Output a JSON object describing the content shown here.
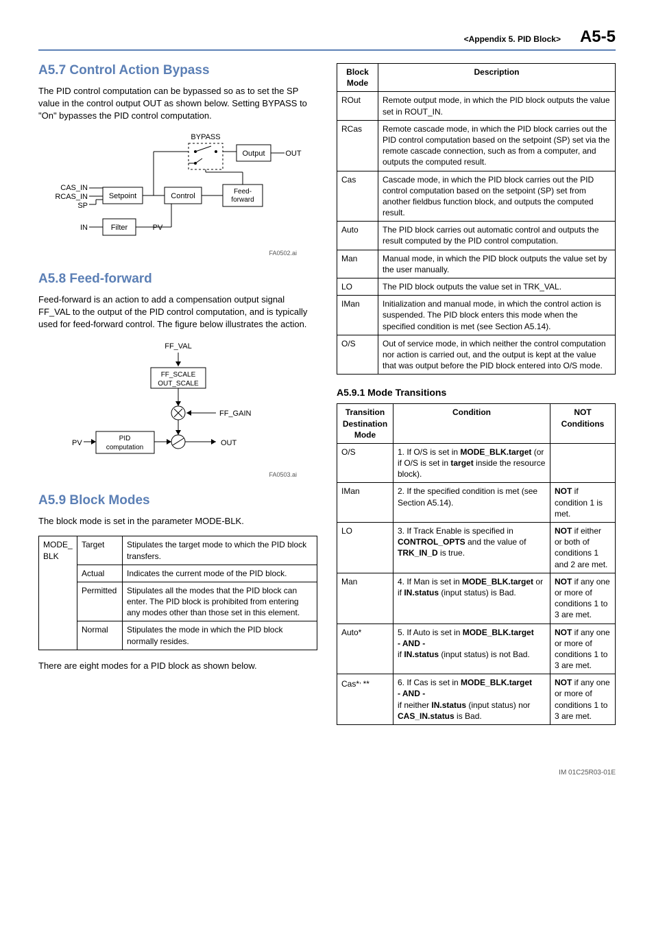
{
  "header": {
    "appendix": "<Appendix 5.  PID Block>",
    "pageNum": "A5-5"
  },
  "left": {
    "sec7": {
      "title": "A5.7   Control Action Bypass",
      "para": "The PID control computation can be bypassed so as to set the SP value in the control output OUT as shown below.  Setting BYPASS to \"On\" bypasses the PID control computation.",
      "diagram": {
        "labels": {
          "bypass": "BYPASS",
          "output": "Output",
          "out": "OUT",
          "cas_in": "CAS_IN",
          "rcas_in": "RCAS_IN",
          "sp": "SP",
          "setpoint": "Setpoint",
          "control": "Control",
          "feedforward": "Feed-\nforward",
          "in": "IN",
          "filter": "Filter",
          "pv": "PV"
        },
        "caption": "FA0502.ai"
      }
    },
    "sec8": {
      "title": "A5.8   Feed-forward",
      "para": "Feed-forward is an action to add a compensation output signal FF_VAL to the output of the PID control computation, and is typically used for feed-forward control.  The figure below illustrates the action.",
      "diagram": {
        "labels": {
          "ff_val": "FF_VAL",
          "ff_scale": "FF_SCALE",
          "out_scale": "OUT_SCALE",
          "ff_gain": "FF_GAIN",
          "pv": "PV",
          "pid": "PID\ncomputation",
          "out": "OUT"
        },
        "caption": "FA0503.ai"
      }
    },
    "sec9": {
      "title": "A5.9   Block Modes",
      "para": "The block mode is set in the parameter MODE-BLK.",
      "table": {
        "rows": [
          [
            "MODE_\nBLK",
            "Target",
            "Stipulates the target mode to which the PID block transfers."
          ],
          [
            "",
            "Actual",
            "Indicates the current mode of the PID block."
          ],
          [
            "",
            "Permitted",
            "Stipulates all the modes that the PID block can enter. The PID block is prohibited from entering any modes other than those set in this element."
          ],
          [
            "",
            "Normal",
            "Stipulates the mode in which the PID block normally resides."
          ]
        ]
      },
      "note": "There are eight modes for a PID block as shown below."
    }
  },
  "right": {
    "modesTable": {
      "headers": [
        "Block Mode",
        "Description"
      ],
      "rows": [
        [
          "ROut",
          "Remote output mode, in which the PID block outputs the value set in ROUT_IN."
        ],
        [
          "RCas",
          "Remote cascade mode, in which the PID block carries out the PID control computation based on the setpoint (SP) set via the remote cascade connection, such as from a computer, and outputs the computed result."
        ],
        [
          "Cas",
          "Cascade mode, in which the PID block carries out the PID control computation based on the setpoint (SP) set from another fieldbus function block, and outputs the computed result."
        ],
        [
          "Auto",
          "The PID block carries out automatic control and outputs the result computed by the PID control computation."
        ],
        [
          "Man",
          "Manual mode, in which the PID block outputs the value set by the user manually."
        ],
        [
          "LO",
          "The PID block outputs the value set in TRK_VAL."
        ],
        [
          "IMan",
          "Initialization and manual mode, in which the control action is suspended. The PID block enters this mode when the specified condition is met (see Section A5.14)."
        ],
        [
          "O/S",
          "Out of service mode, in which neither the control computation nor action is carried out, and the output is kept at the value that was output before the PID block entered into O/S mode."
        ]
      ]
    },
    "sub591": {
      "title": "A5.9.1   Mode Transitions",
      "table": {
        "headers": [
          "Transition Destination Mode",
          "Condition",
          "NOT Conditions"
        ],
        "rows": [
          {
            "c0": "O/S",
            "c1": "1. If O/S is set in <b>MODE_BLK.target</b> (or if O/S is set in <b>target</b> inside the resource block).",
            "c2": ""
          },
          {
            "c0": "IMan",
            "c1": "2. If the specified condition is met (see Section A5.14).",
            "c2": "<b>NOT</b> if condition 1 is met."
          },
          {
            "c0": "LO",
            "c1": "3. If Track Enable is specified in <b>CONTROL_OPTS</b> and the value of <b>TRK_IN_D</b> is true.",
            "c2": "<b>NOT</b> if either or both of conditions 1 and 2 are met."
          },
          {
            "c0": "Man",
            "c1": "4. If Man is set in <b>MODE_BLK.target</b> or if <b>IN.status</b> (input status) is Bad.",
            "c2": "<b>NOT</b> if any one or more of conditions 1 to 3 are met."
          },
          {
            "c0": "Auto*",
            "c1": "5. If Auto is set in <b>MODE_BLK.target</b><br><b>- AND -</b><br>if <b>IN.status</b> (input status) is not Bad.",
            "c2": "<b>NOT</b> if any one or more of conditions 1 to 3 are met."
          },
          {
            "c0": "Cas*<sup>, </sup>**",
            "c1": "6. If Cas is set in <b>MODE_BLK.target</b><br><b>- AND -</b><br>if neither <b>IN.status</b> (input status) nor <b>CAS_IN.status</b> is Bad.",
            "c2": "<b>NOT</b> if any one or more of conditions 1 to 3 are met."
          }
        ]
      }
    }
  },
  "footer": "IM 01C25R03-01E"
}
